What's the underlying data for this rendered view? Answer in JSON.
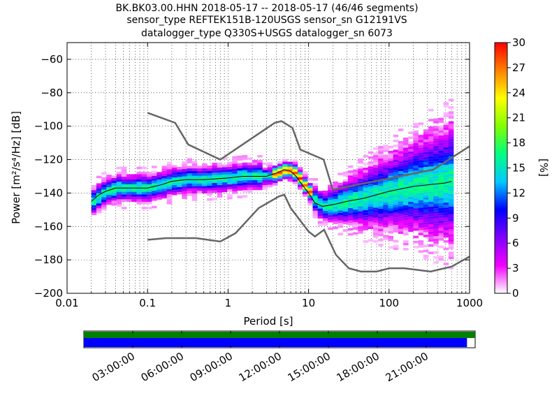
{
  "title_lines": [
    "BK.BK03.00.HHN   2018-05-17 -- 2018-05-17  (46/46 segments)",
    "sensor_type REFTEK151B-120USGS sensor_sn G12191VS",
    "datalogger_type Q330S+USGS datalogger_sn 6073"
  ],
  "chart_data": [
    {
      "type": "heatmap",
      "xscale": "log",
      "xlabel": "Period [s]",
      "ylabel": "Power [m²/s⁴/Hz] [dB]",
      "xlim": [
        0.01,
        1000
      ],
      "ylim": [
        -200,
        -50
      ],
      "xticks": [
        {
          "v": 0.01,
          "label": "0.01"
        },
        {
          "v": 0.1,
          "label": "0.1"
        },
        {
          "v": 1,
          "label": "1"
        },
        {
          "v": 10,
          "label": "10"
        },
        {
          "v": 100,
          "label": "100"
        },
        {
          "v": 1000,
          "label": "1000"
        }
      ],
      "yticks": [
        -60,
        -80,
        -100,
        -120,
        -140,
        -160,
        -180,
        -200
      ],
      "grid": "dotted",
      "colorbar": {
        "label": "[%]",
        "min": 0,
        "max": 30,
        "ticks": [
          0,
          3,
          6,
          9,
          12,
          15,
          18,
          21,
          24,
          27,
          30
        ],
        "colors": [
          "#ffffff",
          "#f200ff",
          "#8000ff",
          "#0000ff",
          "#00c8ff",
          "#00ff80",
          "#80ff00",
          "#ffff00",
          "#ff8000",
          "#ff0000"
        ]
      },
      "mode_curve": [
        [
          0.02,
          -145
        ],
        [
          0.025,
          -141
        ],
        [
          0.03,
          -139
        ],
        [
          0.04,
          -137
        ],
        [
          0.06,
          -137
        ],
        [
          0.1,
          -137
        ],
        [
          0.15,
          -135
        ],
        [
          0.2,
          -133
        ],
        [
          0.3,
          -132
        ],
        [
          0.5,
          -132
        ],
        [
          1,
          -131
        ],
        [
          1.5,
          -130
        ],
        [
          2,
          -130
        ],
        [
          3,
          -130
        ],
        [
          4,
          -128
        ],
        [
          5,
          -126
        ],
        [
          6,
          -127
        ],
        [
          7,
          -130
        ],
        [
          8,
          -134
        ],
        [
          10,
          -140
        ],
        [
          12,
          -146
        ],
        [
          15,
          -148
        ],
        [
          20,
          -147
        ],
        [
          30,
          -145
        ],
        [
          50,
          -143
        ],
        [
          100,
          -139
        ],
        [
          200,
          -136
        ],
        [
          500,
          -134
        ],
        [
          600,
          -133
        ]
      ],
      "nhnm": [
        [
          0.1,
          -92
        ],
        [
          0.22,
          -98
        ],
        [
          0.32,
          -111
        ],
        [
          0.8,
          -120
        ],
        [
          3.8,
          -98
        ],
        [
          4.6,
          -97
        ],
        [
          6.3,
          -101
        ],
        [
          7.9,
          -114
        ],
        [
          15.4,
          -120
        ],
        [
          20,
          -138
        ],
        [
          354,
          -126
        ],
        [
          1000,
          -112
        ]
      ],
      "nlnm": [
        [
          0.1,
          -168
        ],
        [
          0.17,
          -167
        ],
        [
          0.4,
          -167
        ],
        [
          0.8,
          -169
        ],
        [
          1.24,
          -164
        ],
        [
          2.4,
          -149
        ],
        [
          4.3,
          -142
        ],
        [
          5,
          -141
        ],
        [
          6,
          -149
        ],
        [
          10,
          -163
        ],
        [
          12,
          -166
        ],
        [
          15.6,
          -162
        ],
        [
          21.9,
          -177
        ],
        [
          31.6,
          -185
        ],
        [
          45,
          -187
        ],
        [
          70,
          -187
        ],
        [
          101,
          -185
        ],
        [
          154,
          -185
        ],
        [
          328,
          -187
        ],
        [
          600,
          -184
        ],
        [
          1000,
          -178
        ]
      ]
    },
    {
      "type": "timeline",
      "xlabel": "",
      "tick_labels": [
        "03:00:00",
        "06:00:00",
        "09:00:00",
        "12:00:00",
        "15:00:00",
        "18:00:00",
        "21:00:00"
      ],
      "tick_hours": [
        3,
        6,
        9,
        12,
        15,
        18,
        21
      ],
      "range_hours": [
        0,
        24
      ],
      "availability_bar": {
        "color": "#008000",
        "from_hour": 0,
        "to_hour": 24
      },
      "coverage_bar": {
        "color": "#0000ff",
        "from_hour": 0,
        "to_hour": 23.5
      }
    }
  ]
}
